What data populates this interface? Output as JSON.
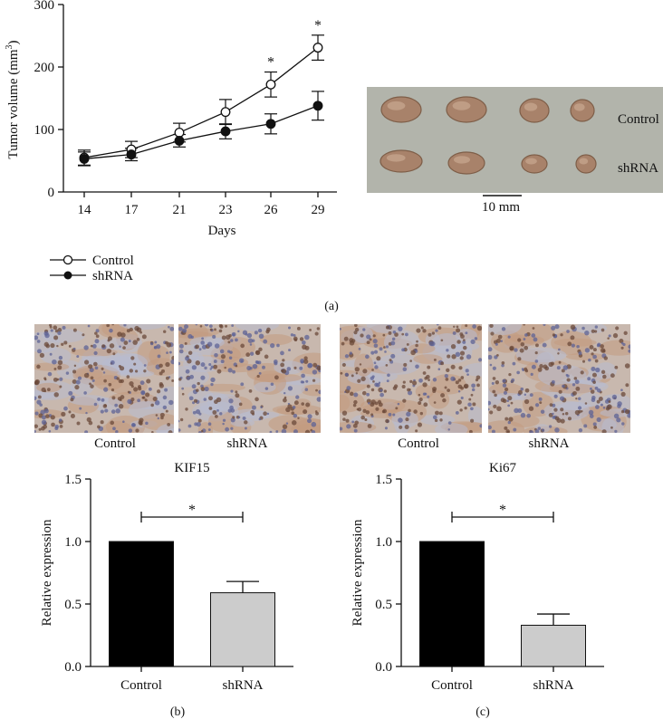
{
  "panel_labels": {
    "a": "(a)",
    "b": "(b)",
    "c": "(c)"
  },
  "tumor_photo": {
    "row_labels": [
      "Control",
      "shRNA"
    ],
    "scale_bar_label": "10 mm",
    "background_color": "#b2b4ab",
    "tumor_color": "#a8826a"
  },
  "ihc_images": {
    "labels": [
      "Control",
      "shRNA",
      "Control",
      "shRNA"
    ]
  },
  "chart_data": [
    {
      "type": "line",
      "xlabel": "Days",
      "ylabel": "Tumor volume (mm",
      "ylabel_sup": "3",
      "ylabel_close": ")",
      "x": [
        14,
        17,
        21,
        23,
        26,
        29
      ],
      "ylim": [
        0,
        300
      ],
      "yticks": [
        0,
        100,
        200,
        300
      ],
      "series": [
        {
          "name": "Control",
          "marker": "open-circle",
          "values": [
            55,
            68,
            95,
            128,
            172,
            231
          ],
          "errors": [
            12,
            13,
            15,
            20,
            20,
            20
          ]
        },
        {
          "name": "shRNA",
          "marker": "filled-circle",
          "values": [
            53,
            60,
            82,
            97,
            109,
            138
          ],
          "errors": [
            11,
            10,
            10,
            12,
            16,
            23
          ]
        }
      ],
      "annotations": [
        {
          "x": 26,
          "text": "*"
        },
        {
          "x": 29,
          "text": "*"
        }
      ],
      "legend": "bottom-left"
    },
    {
      "type": "bar",
      "title": "KIF15",
      "ylabel": "Relative expression",
      "categories": [
        "Control",
        "shRNA"
      ],
      "values": [
        1.0,
        0.59
      ],
      "errors": [
        0,
        0.09
      ],
      "colors": [
        "#000000",
        "#cccccc"
      ],
      "ylim": [
        0,
        1.5
      ],
      "yticks": [
        "0.0",
        "0.5",
        "1.0",
        "1.5"
      ],
      "significance": "*"
    },
    {
      "type": "bar",
      "title": "Ki67",
      "ylabel": "Relative expression",
      "categories": [
        "Control",
        "shRNA"
      ],
      "values": [
        1.0,
        0.33
      ],
      "errors": [
        0,
        0.09
      ],
      "colors": [
        "#000000",
        "#cccccc"
      ],
      "ylim": [
        0,
        1.5
      ],
      "yticks": [
        "0.0",
        "0.5",
        "1.0",
        "1.5"
      ],
      "significance": "*"
    }
  ]
}
